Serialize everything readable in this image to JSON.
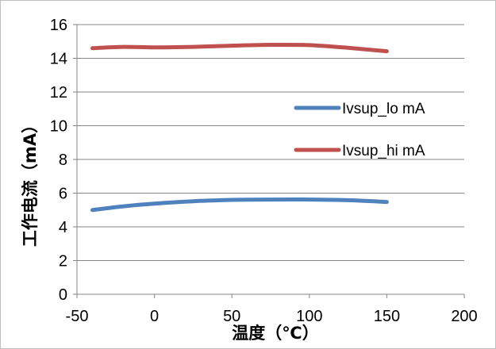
{
  "chart_data": {
    "type": "line",
    "title": "",
    "xlabel": "温度（℃）",
    "ylabel": "工作电流（mA）",
    "xlim": [
      -50,
      200
    ],
    "ylim": [
      0,
      16
    ],
    "xticks": [
      -50,
      0,
      50,
      100,
      150,
      200
    ],
    "yticks": [
      0,
      2,
      4,
      6,
      8,
      10,
      12,
      14,
      16
    ],
    "xtick_labels": [
      "-50",
      "0",
      "50",
      "100",
      "150",
      "200"
    ],
    "ytick_labels": [
      "0",
      "2",
      "4",
      "6",
      "8",
      "10",
      "12",
      "14",
      "16"
    ],
    "grid": "horizontal",
    "legend_position": "right",
    "series": [
      {
        "name": "Ivsup_lo mA",
        "color": "#4f81bd",
        "x": [
          -40,
          -20,
          0,
          25,
          50,
          75,
          100,
          125,
          150
        ],
        "y": [
          5.0,
          5.22,
          5.38,
          5.52,
          5.6,
          5.62,
          5.62,
          5.58,
          5.48
        ]
      },
      {
        "name": "Ivsup_hi mA",
        "color": "#c0504d",
        "x": [
          -40,
          -20,
          0,
          25,
          50,
          75,
          100,
          125,
          150
        ],
        "y": [
          14.6,
          14.68,
          14.65,
          14.68,
          14.75,
          14.8,
          14.78,
          14.62,
          14.42
        ]
      }
    ]
  }
}
